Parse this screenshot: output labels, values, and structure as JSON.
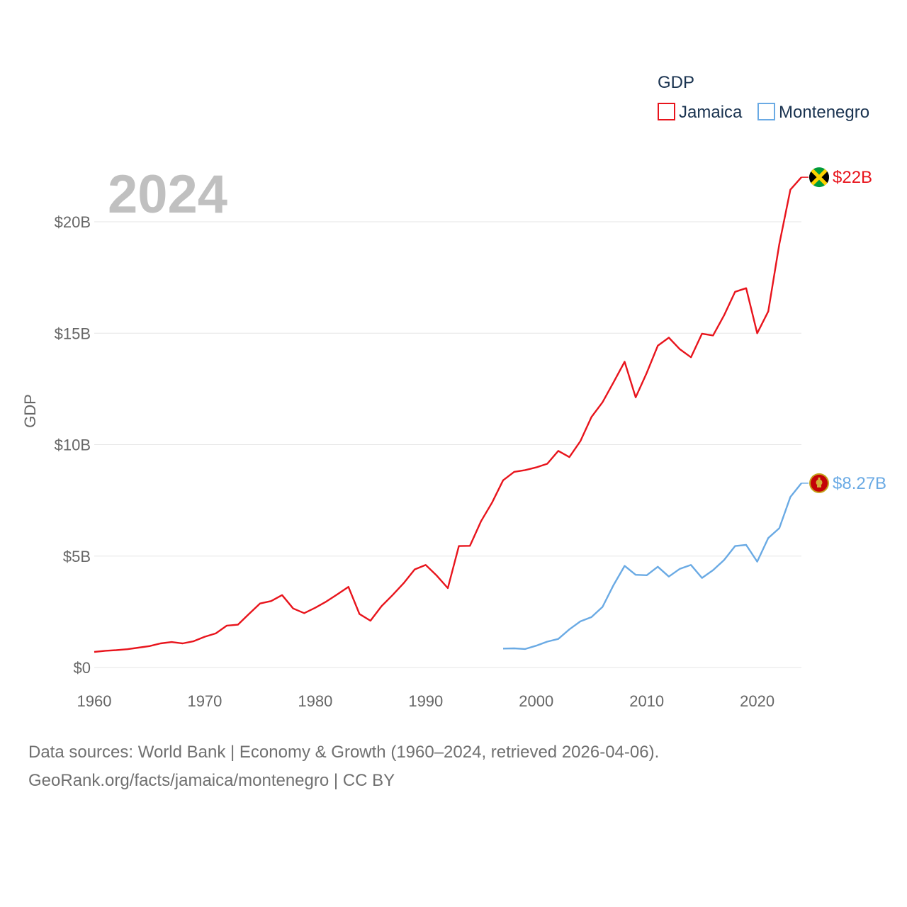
{
  "chart_data": {
    "type": "line",
    "title": "",
    "xlabel": "",
    "ylabel": "GDP",
    "xlim": [
      1960,
      2024
    ],
    "ylim": [
      0,
      20
    ],
    "y_unit": "billion USD",
    "x_ticks": [
      1960,
      1970,
      1980,
      1990,
      2000,
      2010,
      2020
    ],
    "y_ticks": [
      0,
      5,
      10,
      15,
      20
    ],
    "y_tick_labels": [
      "$0",
      "$5B",
      "$10B",
      "$15B",
      "$20B"
    ],
    "legend_title": "GDP",
    "legend_position": "top-right",
    "current_year_label": "2024",
    "series": [
      {
        "name": "Jamaica",
        "color": "#e8141c",
        "end_label": "$22B",
        "flag": "jamaica-flag",
        "x": [
          1960,
          1961,
          1962,
          1963,
          1964,
          1965,
          1966,
          1967,
          1968,
          1969,
          1970,
          1971,
          1972,
          1973,
          1974,
          1975,
          1976,
          1977,
          1978,
          1979,
          1980,
          1981,
          1982,
          1983,
          1984,
          1985,
          1986,
          1987,
          1988,
          1989,
          1990,
          1991,
          1992,
          1993,
          1994,
          1995,
          1996,
          1997,
          1998,
          1999,
          2000,
          2001,
          2002,
          2003,
          2004,
          2005,
          2006,
          2007,
          2008,
          2009,
          2010,
          2011,
          2012,
          2013,
          2014,
          2015,
          2016,
          2017,
          2018,
          2019,
          2020,
          2021,
          2022,
          2023,
          2024
        ],
        "values": [
          0.7,
          0.75,
          0.78,
          0.82,
          0.89,
          0.96,
          1.08,
          1.14,
          1.08,
          1.18,
          1.38,
          1.53,
          1.88,
          1.92,
          2.4,
          2.87,
          2.98,
          3.25,
          2.65,
          2.44,
          2.68,
          2.96,
          3.28,
          3.62,
          2.4,
          2.1,
          2.75,
          3.25,
          3.78,
          4.4,
          4.6,
          4.12,
          3.56,
          5.45,
          5.46,
          6.56,
          7.4,
          8.4,
          8.78,
          8.86,
          8.98,
          9.14,
          9.72,
          9.44,
          10.16,
          11.24,
          11.9,
          12.8,
          13.72,
          12.12,
          13.22,
          14.44,
          14.8,
          14.28,
          13.92,
          14.98,
          14.9,
          15.8,
          16.86,
          17.02,
          15.0,
          15.98,
          19.0,
          21.44,
          22.0
        ]
      },
      {
        "name": "Montenegro",
        "color": "#6aaae4",
        "end_label": "$8.27B",
        "flag": "montenegro-flag",
        "x": [
          1997,
          1998,
          1999,
          2000,
          2001,
          2002,
          2003,
          2004,
          2005,
          2006,
          2007,
          2008,
          2009,
          2010,
          2011,
          2012,
          2013,
          2014,
          2015,
          2016,
          2017,
          2018,
          2019,
          2020,
          2021,
          2022,
          2023,
          2024
        ],
        "values": [
          0.85,
          0.86,
          0.83,
          0.98,
          1.16,
          1.28,
          1.71,
          2.07,
          2.26,
          2.72,
          3.7,
          4.56,
          4.16,
          4.14,
          4.52,
          4.08,
          4.43,
          4.6,
          4.02,
          4.37,
          4.82,
          5.45,
          5.5,
          4.75,
          5.81,
          6.25,
          7.65,
          8.27
        ]
      }
    ]
  },
  "footer": {
    "line1": "Data sources: World Bank | Economy & Growth (1960–2024, retrieved 2026-04-06).",
    "line2": "GeoRank.org/facts/jamaica/montenegro | CC BY"
  }
}
